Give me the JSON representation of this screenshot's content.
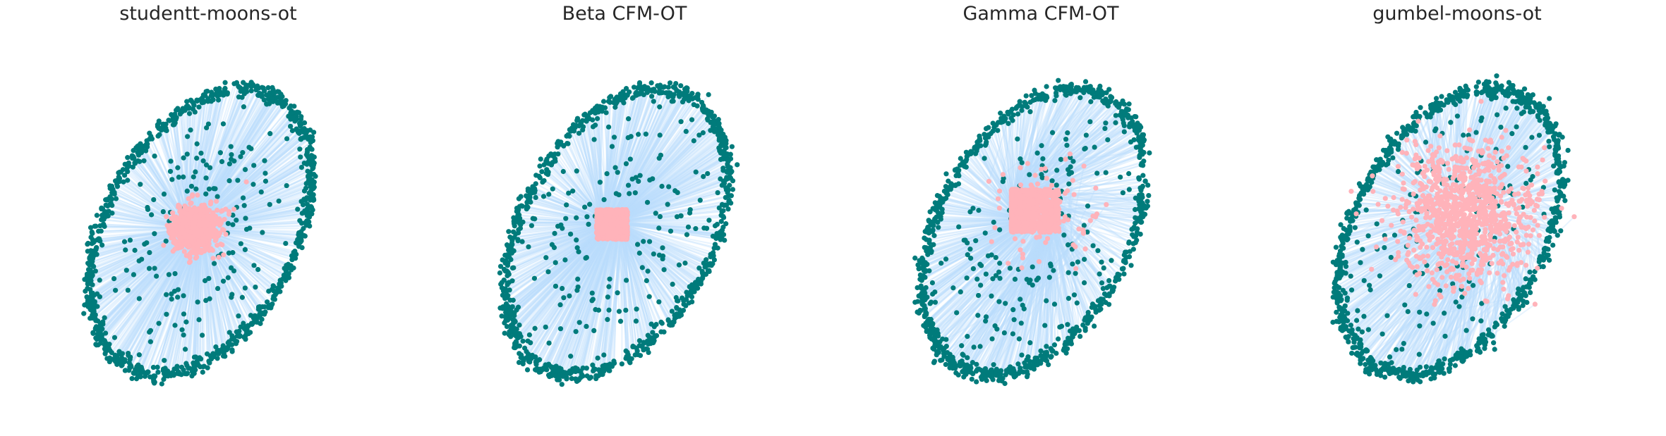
{
  "colors": {
    "line": "#b9defc",
    "target": "#007b7b",
    "source": "#ffb3ba",
    "title": "#262626"
  },
  "chart_data": [
    {
      "type": "scatter",
      "title": "studentt-moons-ot",
      "grid": false,
      "axes": "hidden",
      "xlim": [
        -1.25,
        1.25
      ],
      "ylim": [
        -1.25,
        1.25
      ],
      "target_shape": "tilted-ring",
      "source_shape": "gaussian-blob",
      "source_center": [
        -0.08,
        0.0
      ],
      "source_spread": [
        0.1,
        0.1
      ],
      "source_outliers": 0.01,
      "points_per_set": 1000
    },
    {
      "type": "scatter",
      "title": "Beta CFM-OT",
      "grid": false,
      "axes": "hidden",
      "xlim": [
        -1.25,
        1.25
      ],
      "ylim": [
        -1.25,
        1.25
      ],
      "target_shape": "tilted-ring",
      "source_shape": "square",
      "source_center": [
        -0.08,
        0.03
      ],
      "source_spread": [
        0.1,
        0.1
      ],
      "source_outliers": 0,
      "points_per_set": 1000
    },
    {
      "type": "scatter",
      "title": "Gamma CFM-OT",
      "grid": false,
      "axes": "hidden",
      "xlim": [
        -1.25,
        1.25
      ],
      "ylim": [
        -1.25,
        1.25
      ],
      "target_shape": "tilted-ring",
      "source_shape": "skewed-square",
      "source_center": [
        -0.05,
        0.05
      ],
      "source_spread": [
        0.14,
        0.18
      ],
      "source_outliers": 0.08,
      "points_per_set": 1000
    },
    {
      "type": "scatter",
      "title": "gumbel-moons-ot",
      "grid": false,
      "axes": "hidden",
      "xlim": [
        -1.25,
        1.25
      ],
      "ylim": [
        -1.25,
        1.25
      ],
      "target_shape": "tilted-ring",
      "source_shape": "wide-cloud",
      "source_center": [
        0.05,
        0.1
      ],
      "source_spread": [
        0.35,
        0.45
      ],
      "source_outliers": 0.05,
      "points_per_set": 1000
    }
  ]
}
